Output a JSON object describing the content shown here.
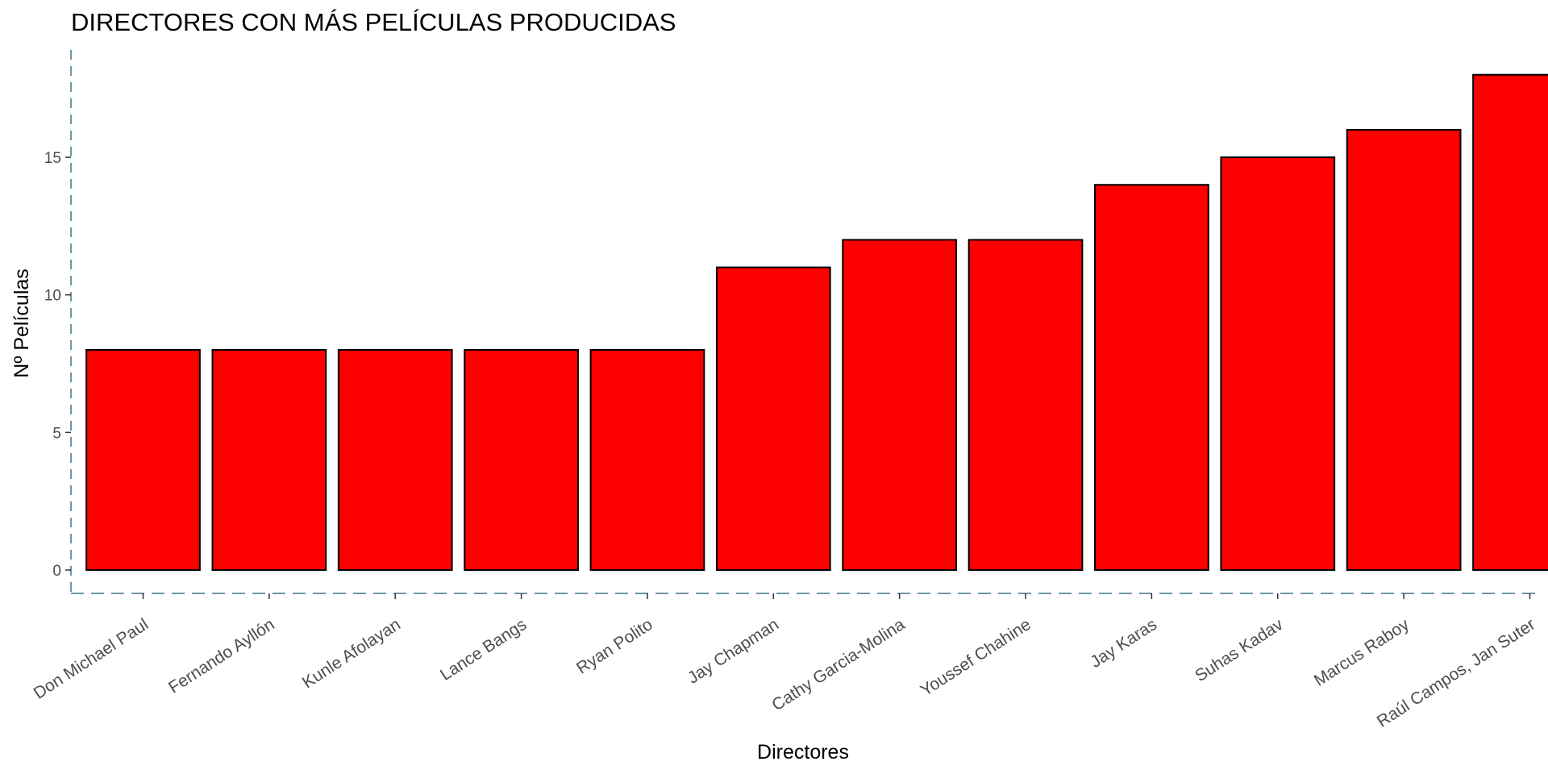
{
  "chart_data": {
    "type": "bar",
    "title": "DIRECTORES CON MÁS PELÍCULAS PRODUCIDAS",
    "xlabel": "Directores",
    "ylabel": "Nº Películas",
    "categories": [
      "Don Michael Paul",
      "Fernando Ayllón",
      "Kunle Afolayan",
      "Lance Bangs",
      "Ryan Polito",
      "Jay Chapman",
      "Cathy Garcia-Molina",
      "Youssef Chahine",
      "Jay Karas",
      "Suhas Kadav",
      "Marcus Raboy",
      "Raúl Campos, Jan Suter"
    ],
    "values": [
      8,
      8,
      8,
      8,
      8,
      11,
      12,
      12,
      14,
      15,
      16,
      18
    ],
    "yticks": [
      0,
      5,
      10,
      15
    ],
    "ylim": [
      -0.85,
      18.9
    ],
    "grid": false,
    "legend": "none",
    "bar_color": "#ff0000",
    "bar_border_color": "#000000",
    "axis_line_color": "#6b97a6"
  }
}
